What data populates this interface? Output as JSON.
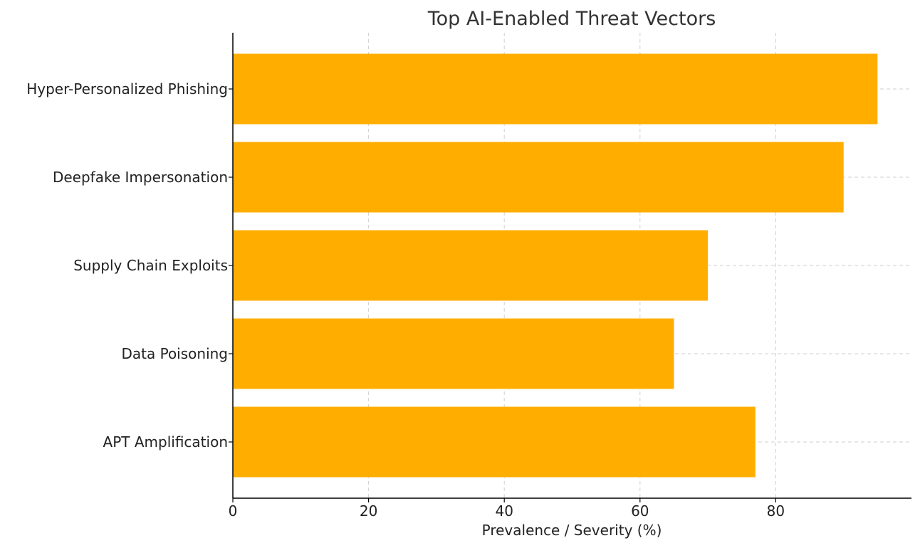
{
  "chart_data": {
    "type": "bar",
    "orientation": "horizontal",
    "title": "Top AI-Enabled Threat Vectors",
    "xlabel": "Prevalence / Severity (%)",
    "ylabel": "",
    "categories": [
      "Hyper-Personalized Phishing",
      "Deepfake Impersonation",
      "Supply Chain Exploits",
      "Data Poisoning",
      "APT Amplification"
    ],
    "values": [
      95,
      90,
      70,
      65,
      77
    ],
    "xlim": [
      0,
      100
    ],
    "xticks": [
      0,
      20,
      40,
      60,
      80
    ],
    "grid": true,
    "bar_color": "#FFAE00"
  }
}
